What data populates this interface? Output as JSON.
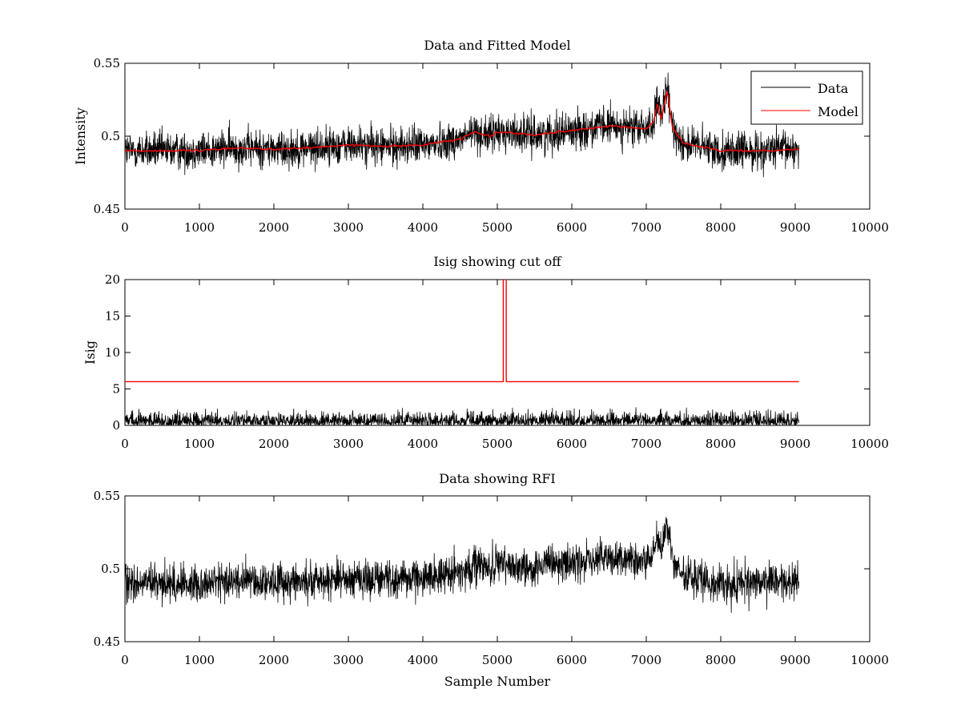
{
  "chart_data": [
    {
      "type": "line",
      "title": "Data and Fitted Model",
      "xlabel": "",
      "ylabel": "Intensity",
      "xlim": [
        0,
        10000
      ],
      "ylim": [
        0.45,
        0.55
      ],
      "xticks": [
        "0",
        "1000",
        "2000",
        "3000",
        "4000",
        "5000",
        "6000",
        "7000",
        "8000",
        "9000",
        "10000"
      ],
      "yticks": [
        {
          "value": 0.45,
          "label": "0.45"
        },
        {
          "value": 0.5,
          "label": "0.5"
        },
        {
          "value": 0.55,
          "label": "0.55"
        }
      ],
      "legend": {
        "position": "top-right",
        "entries": [
          "Data",
          "Model"
        ]
      },
      "series": [
        {
          "name": "Data",
          "color": "#000000",
          "noise_amplitude": 0.014,
          "x": [
            0,
            1000,
            1500,
            2000,
            2500,
            3000,
            3500,
            4000,
            4500,
            4700,
            4900,
            5000,
            5500,
            6000,
            6500,
            7000,
            7100,
            7150,
            7200,
            7280,
            7350,
            7500,
            8000,
            8500,
            9000,
            9050
          ],
          "values": [
            0.49,
            0.49,
            0.492,
            0.491,
            0.492,
            0.494,
            0.493,
            0.494,
            0.498,
            0.503,
            0.5,
            0.503,
            0.501,
            0.504,
            0.507,
            0.505,
            0.51,
            0.522,
            0.512,
            0.532,
            0.506,
            0.495,
            0.49,
            0.49,
            0.491,
            0.491
          ]
        },
        {
          "name": "Model",
          "color": "#ff0000",
          "noise_amplitude": 0.0008,
          "x": [
            0,
            1000,
            1500,
            2000,
            2500,
            3000,
            3500,
            4000,
            4500,
            4700,
            4900,
            5000,
            5500,
            6000,
            6500,
            7000,
            7100,
            7150,
            7200,
            7280,
            7350,
            7500,
            8000,
            8500,
            9000,
            9050
          ],
          "values": [
            0.49,
            0.49,
            0.492,
            0.491,
            0.492,
            0.494,
            0.493,
            0.494,
            0.498,
            0.503,
            0.5,
            0.503,
            0.501,
            0.504,
            0.507,
            0.505,
            0.51,
            0.522,
            0.512,
            0.532,
            0.506,
            0.495,
            0.49,
            0.49,
            0.491,
            0.491
          ]
        }
      ]
    },
    {
      "type": "line",
      "title": "Isig showing cut off",
      "xlabel": "",
      "ylabel": "Isig",
      "xlim": [
        0,
        10000
      ],
      "ylim": [
        0,
        20
      ],
      "xticks": [
        "0",
        "1000",
        "2000",
        "3000",
        "4000",
        "5000",
        "6000",
        "7000",
        "8000",
        "9000",
        "10000"
      ],
      "yticks": [
        {
          "value": 0,
          "label": "0"
        },
        {
          "value": 5,
          "label": "5"
        },
        {
          "value": 10,
          "label": "10"
        },
        {
          "value": 15,
          "label": "15"
        },
        {
          "value": 20,
          "label": "20"
        }
      ],
      "series": [
        {
          "name": "Isig",
          "color": "#000000",
          "noise_max": 3.5,
          "x_range": [
            0,
            9050
          ]
        },
        {
          "name": "Cut off",
          "color": "#ff0000",
          "x": [
            0,
            5080,
            5080,
            5120,
            5120,
            9050
          ],
          "values": [
            6,
            6,
            20,
            20,
            6,
            6
          ]
        }
      ]
    },
    {
      "type": "line",
      "title": "Data showing RFI",
      "xlabel": "Sample Number",
      "ylabel": "",
      "xlim": [
        0,
        10000
      ],
      "ylim": [
        0.45,
        0.55
      ],
      "xticks": [
        "0",
        "1000",
        "2000",
        "3000",
        "4000",
        "5000",
        "6000",
        "7000",
        "8000",
        "9000",
        "10000"
      ],
      "yticks": [
        {
          "value": 0.45,
          "label": "0.45"
        },
        {
          "value": 0.5,
          "label": "0.5"
        },
        {
          "value": 0.55,
          "label": "0.55"
        }
      ],
      "series": [
        {
          "name": "Data",
          "color": "#000000",
          "noise_amplitude": 0.014,
          "x": [
            0,
            1000,
            1500,
            2000,
            2500,
            3000,
            3500,
            4000,
            4500,
            4700,
            4900,
            5000,
            5500,
            6000,
            6500,
            7000,
            7100,
            7150,
            7200,
            7280,
            7350,
            7500,
            8000,
            8500,
            9000,
            9050
          ],
          "values": [
            0.49,
            0.49,
            0.492,
            0.491,
            0.492,
            0.494,
            0.493,
            0.494,
            0.498,
            0.503,
            0.5,
            0.503,
            0.501,
            0.504,
            0.507,
            0.505,
            0.51,
            0.522,
            0.512,
            0.532,
            0.506,
            0.495,
            0.49,
            0.49,
            0.491,
            0.491
          ]
        }
      ]
    }
  ]
}
